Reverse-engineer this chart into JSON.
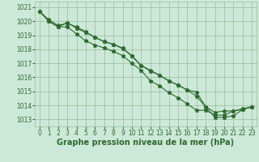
{
  "x": [
    0,
    1,
    2,
    3,
    4,
    5,
    6,
    7,
    8,
    9,
    10,
    11,
    12,
    13,
    14,
    15,
    16,
    17,
    18,
    19,
    20,
    21,
    22,
    23
  ],
  "line1": [
    1020.7,
    1020.1,
    1019.7,
    1019.85,
    1019.6,
    1019.25,
    1018.85,
    1018.55,
    1018.35,
    1018.1,
    1017.5,
    1016.85,
    1016.5,
    1016.15,
    1015.75,
    1015.45,
    1015.1,
    1014.65,
    1013.9,
    1013.15,
    1013.15,
    1013.25,
    1013.7,
    1013.9
  ],
  "line2": [
    1020.7,
    1020.0,
    1019.6,
    1019.9,
    1019.5,
    1019.2,
    1018.85,
    1018.55,
    1018.35,
    1018.05,
    1017.55,
    1016.85,
    1016.45,
    1016.15,
    1015.75,
    1015.45,
    1015.1,
    1014.95,
    1013.9,
    1013.5,
    1013.6,
    1013.6,
    1013.7,
    1013.9
  ],
  "line3": [
    1020.7,
    1020.0,
    1019.6,
    1019.6,
    1019.1,
    1018.6,
    1018.3,
    1018.1,
    1017.85,
    1017.55,
    1017.0,
    1016.5,
    1015.75,
    1015.4,
    1014.9,
    1014.55,
    1014.1,
    1013.65,
    1013.65,
    1013.3,
    1013.3,
    1013.6,
    1013.75,
    1013.9
  ],
  "line_color": "#2d6a2d",
  "bg_color": "#cce8d8",
  "grid_color": "#99bb99",
  "ylabel_ticks": [
    1013,
    1014,
    1015,
    1016,
    1017,
    1018,
    1019,
    1020,
    1021
  ],
  "xlabel_ticks": [
    0,
    1,
    2,
    3,
    4,
    5,
    6,
    7,
    8,
    9,
    10,
    11,
    12,
    13,
    14,
    15,
    16,
    17,
    18,
    19,
    20,
    21,
    22,
    23
  ],
  "xlabel": "Graphe pression niveau de la mer (hPa)",
  "ylim": [
    1012.5,
    1021.4
  ],
  "xlim": [
    -0.5,
    23.5
  ],
  "marker": "*",
  "marker_size": 3.5,
  "line_width": 0.8,
  "tick_fontsize": 5.5,
  "xlabel_fontsize": 7.0
}
